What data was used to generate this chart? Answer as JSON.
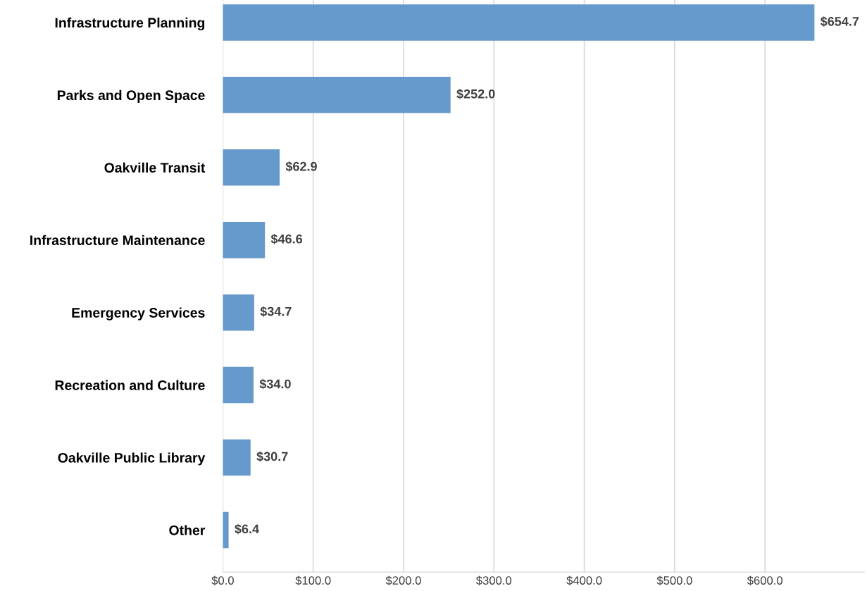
{
  "chart_data": {
    "type": "bar",
    "orientation": "horizontal",
    "categories": [
      "Infrastructure Planning",
      "Parks and Open Space",
      "Oakville Transit",
      "Infrastructure Maintenance",
      "Emergency Services",
      "Recreation and Culture",
      "Oakville Public Library",
      "Other"
    ],
    "values": [
      654.7,
      252.0,
      62.9,
      46.6,
      34.7,
      34.0,
      30.7,
      6.4
    ],
    "value_labels": [
      "$654.7",
      "$252.0",
      "$62.9",
      "$46.6",
      "$34.7",
      "$34.0",
      "$30.7",
      "$6.4"
    ],
    "color": "#6699cc",
    "xlim": [
      0,
      710
    ],
    "xticks": [
      {
        "value": 0,
        "label": "$0.0"
      },
      {
        "value": 100,
        "label": "$100.0"
      },
      {
        "value": 200,
        "label": "$200.0"
      },
      {
        "value": 300,
        "label": "$300.0"
      },
      {
        "value": 400,
        "label": "$400.0"
      },
      {
        "value": 500,
        "label": "$500.0"
      },
      {
        "value": 600,
        "label": "$600.0"
      }
    ],
    "grid": "x",
    "legend": false
  }
}
